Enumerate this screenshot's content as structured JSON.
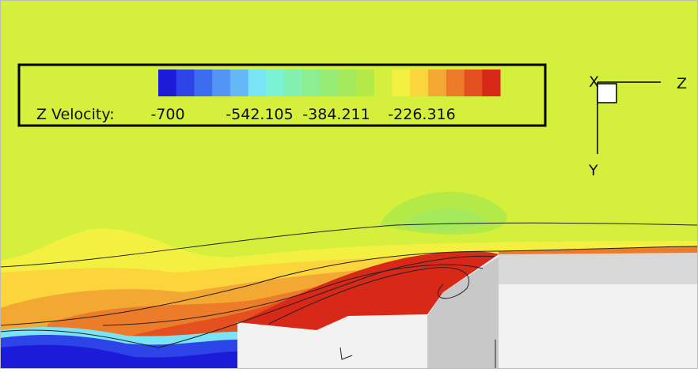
{
  "legend": {
    "label": "Z Velocity:",
    "ticks": [
      "-700",
      "-542.105",
      "-384.211",
      "-226.316"
    ],
    "colors": [
      "#1c1cd8",
      "#2c44e8",
      "#3c6cf0",
      "#5494f4",
      "#64b8f6",
      "#78e4f6",
      "#7cf2d4",
      "#84f0b0",
      "#8cee90",
      "#96ec74",
      "#a4ea5c",
      "#b4ea48",
      "#d4f03c",
      "#f4f042",
      "#fcd43c",
      "#f4a834",
      "#ec7c2a",
      "#e45020",
      "#d82818"
    ]
  },
  "axes": {
    "x": "X",
    "z": "Z",
    "y": "Y"
  }
}
